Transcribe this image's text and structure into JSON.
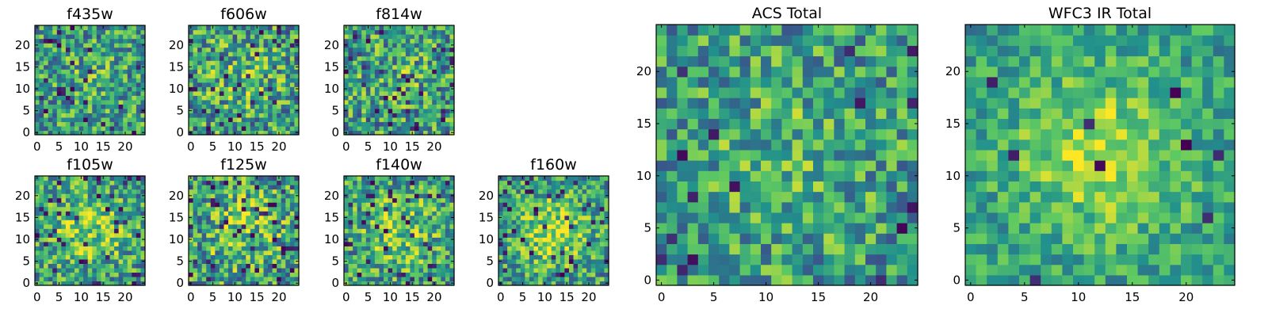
{
  "figure": {
    "colormap": "viridis",
    "colormap_stops": [
      "#440154",
      "#3b528b",
      "#21918c",
      "#5ec962",
      "#fde725"
    ]
  },
  "chart_data": [
    {
      "type": "heatmap",
      "title": "f435w",
      "size": 25,
      "seed": 11,
      "hotspot": 0.15,
      "noise": 0.55,
      "deep_fraction": 0.04,
      "x_ticks": [
        0,
        5,
        10,
        15,
        20
      ],
      "y_ticks": [
        0,
        5,
        10,
        15,
        20
      ],
      "xlim": [
        -0.5,
        24.5
      ],
      "ylim": [
        -0.5,
        24.5
      ]
    },
    {
      "type": "heatmap",
      "title": "f606w",
      "size": 25,
      "seed": 23,
      "hotspot": 0.25,
      "noise": 0.6,
      "deep_fraction": 0.05,
      "x_ticks": [
        0,
        5,
        10,
        15,
        20
      ],
      "y_ticks": [
        0,
        5,
        10,
        15,
        20
      ],
      "xlim": [
        -0.5,
        24.5
      ],
      "ylim": [
        -0.5,
        24.5
      ]
    },
    {
      "type": "heatmap",
      "title": "f814w",
      "size": 25,
      "seed": 37,
      "hotspot": 0.15,
      "noise": 0.6,
      "deep_fraction": 0.05,
      "x_ticks": [
        0,
        5,
        10,
        15,
        20
      ],
      "y_ticks": [
        0,
        5,
        10,
        15,
        20
      ],
      "xlim": [
        -0.5,
        24.5
      ],
      "ylim": [
        -0.5,
        24.5
      ]
    },
    {
      "type": "heatmap",
      "title": "f105w",
      "size": 25,
      "seed": 41,
      "hotspot": 0.45,
      "noise": 0.55,
      "deep_fraction": 0.06,
      "x_ticks": [
        0,
        5,
        10,
        15,
        20
      ],
      "y_ticks": [
        0,
        5,
        10,
        15,
        20
      ],
      "xlim": [
        -0.5,
        24.5
      ],
      "ylim": [
        -0.5,
        24.5
      ]
    },
    {
      "type": "heatmap",
      "title": "f125w",
      "size": 25,
      "seed": 53,
      "hotspot": 0.4,
      "noise": 0.6,
      "deep_fraction": 0.07,
      "x_ticks": [
        0,
        5,
        10,
        15,
        20
      ],
      "y_ticks": [
        0,
        5,
        10,
        15,
        20
      ],
      "xlim": [
        -0.5,
        24.5
      ],
      "ylim": [
        -0.5,
        24.5
      ]
    },
    {
      "type": "heatmap",
      "title": "f140w",
      "size": 25,
      "seed": 67,
      "hotspot": 0.45,
      "noise": 0.55,
      "deep_fraction": 0.05,
      "x_ticks": [
        0,
        5,
        10,
        15,
        20
      ],
      "y_ticks": [
        0,
        5,
        10,
        15,
        20
      ],
      "xlim": [
        -0.5,
        24.5
      ],
      "ylim": [
        -0.5,
        24.5
      ]
    },
    {
      "type": "heatmap",
      "title": "f160w",
      "size": 25,
      "seed": 79,
      "hotspot": 0.55,
      "noise": 0.5,
      "deep_fraction": 0.07,
      "x_ticks": [
        0,
        5,
        10,
        15,
        20
      ],
      "y_ticks": [
        0,
        5,
        10,
        15,
        20
      ],
      "xlim": [
        -0.5,
        24.5
      ],
      "ylim": [
        -0.5,
        24.5
      ]
    },
    {
      "type": "heatmap",
      "title": "ACS Total",
      "size": 25,
      "seed": 89,
      "hotspot": 0.2,
      "noise": 0.5,
      "deep_fraction": 0.025,
      "x_ticks": [
        0,
        5,
        10,
        15,
        20
      ],
      "y_ticks": [
        0,
        5,
        10,
        15,
        20
      ],
      "xlim": [
        -0.5,
        24.5
      ],
      "ylim": [
        -0.5,
        24.5
      ]
    },
    {
      "type": "heatmap",
      "title": "WFC3 IR Total",
      "size": 25,
      "seed": 97,
      "hotspot": 0.6,
      "noise": 0.35,
      "deep_fraction": 0.015,
      "x_ticks": [
        0,
        5,
        10,
        15,
        20
      ],
      "y_ticks": [
        0,
        5,
        10,
        15,
        20
      ],
      "xlim": [
        -0.5,
        24.5
      ],
      "ylim": [
        -0.5,
        24.5
      ]
    }
  ]
}
